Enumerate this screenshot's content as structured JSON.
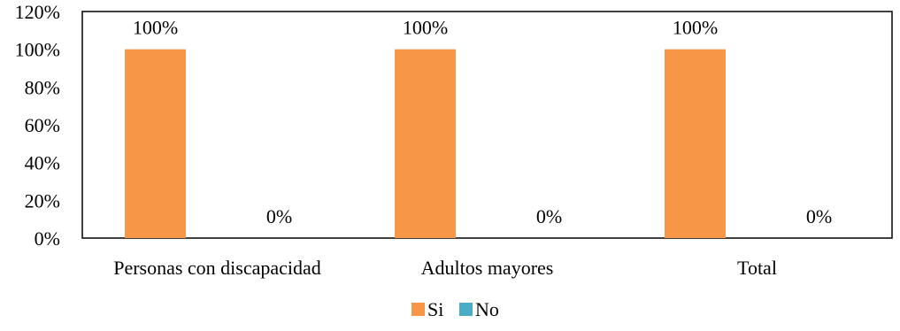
{
  "chart_data": {
    "type": "bar",
    "categories": [
      "Personas con discapacidad",
      "Adultos mayores",
      "Total"
    ],
    "series": [
      {
        "name": "Si",
        "values": [
          100,
          100,
          100
        ],
        "color": "#F79646"
      },
      {
        "name": "No",
        "values": [
          0,
          0,
          0
        ],
        "color": "#4BACC6"
      }
    ],
    "value_suffix": "%",
    "ylim": [
      0,
      120
    ],
    "y_ticks": [
      0,
      20,
      40,
      60,
      80,
      100,
      120
    ],
    "y_tick_labels": [
      "0%",
      "20%",
      "40%",
      "60%",
      "80%",
      "100%",
      "120%"
    ],
    "data_labels": [
      [
        "100%",
        "100%",
        "100%"
      ],
      [
        "0%",
        "0%",
        "0%"
      ]
    ],
    "title": "",
    "xlabel": "",
    "ylabel": "",
    "grid": false,
    "legend_position": "bottom",
    "plot_border": true
  }
}
